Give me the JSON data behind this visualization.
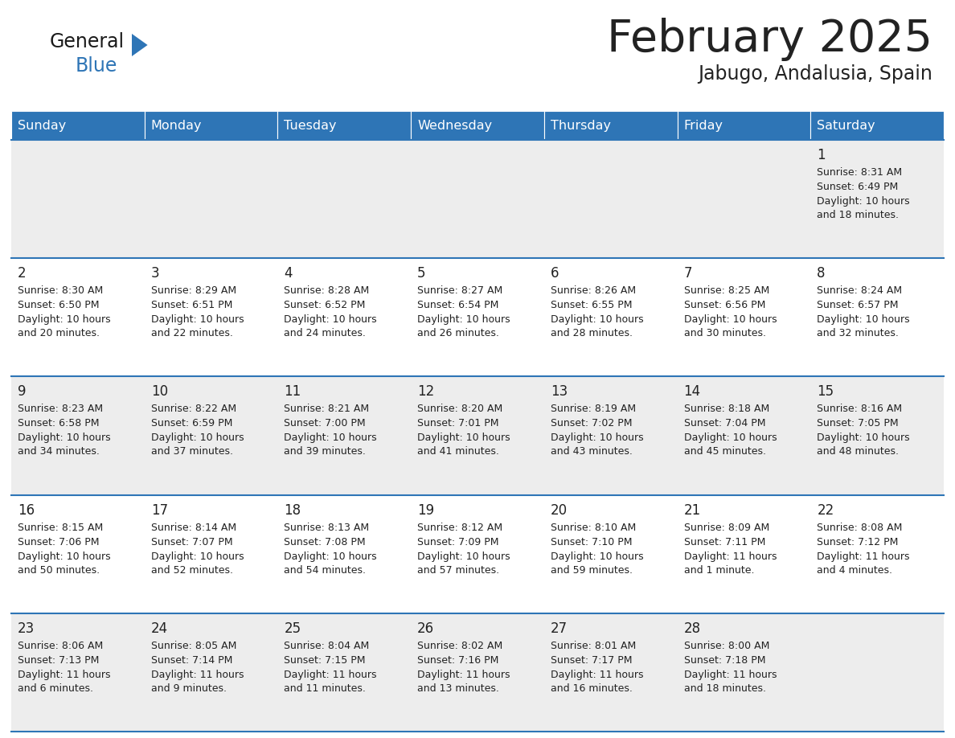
{
  "title": "February 2025",
  "subtitle": "Jabugo, Andalusia, Spain",
  "header_color": "#2E75B6",
  "header_text_color": "#FFFFFF",
  "background_color": "#FFFFFF",
  "cell_alt_color": "#EDEDED",
  "days_of_week": [
    "Sunday",
    "Monday",
    "Tuesday",
    "Wednesday",
    "Thursday",
    "Friday",
    "Saturday"
  ],
  "separator_color": "#2E75B6",
  "text_color": "#222222",
  "day_num_color": "#222222",
  "logo_general_color": "#1a1a1a",
  "logo_blue_color": "#2E75B6",
  "logo_triangle_color": "#2E75B6",
  "calendar_data": [
    [
      {
        "day": null,
        "sunrise": null,
        "sunset": null,
        "daylight": null
      },
      {
        "day": null,
        "sunrise": null,
        "sunset": null,
        "daylight": null
      },
      {
        "day": null,
        "sunrise": null,
        "sunset": null,
        "daylight": null
      },
      {
        "day": null,
        "sunrise": null,
        "sunset": null,
        "daylight": null
      },
      {
        "day": null,
        "sunrise": null,
        "sunset": null,
        "daylight": null
      },
      {
        "day": null,
        "sunrise": null,
        "sunset": null,
        "daylight": null
      },
      {
        "day": 1,
        "sunrise": "8:31 AM",
        "sunset": "6:49 PM",
        "daylight": "10 hours\nand 18 minutes."
      }
    ],
    [
      {
        "day": 2,
        "sunrise": "8:30 AM",
        "sunset": "6:50 PM",
        "daylight": "10 hours\nand 20 minutes."
      },
      {
        "day": 3,
        "sunrise": "8:29 AM",
        "sunset": "6:51 PM",
        "daylight": "10 hours\nand 22 minutes."
      },
      {
        "day": 4,
        "sunrise": "8:28 AM",
        "sunset": "6:52 PM",
        "daylight": "10 hours\nand 24 minutes."
      },
      {
        "day": 5,
        "sunrise": "8:27 AM",
        "sunset": "6:54 PM",
        "daylight": "10 hours\nand 26 minutes."
      },
      {
        "day": 6,
        "sunrise": "8:26 AM",
        "sunset": "6:55 PM",
        "daylight": "10 hours\nand 28 minutes."
      },
      {
        "day": 7,
        "sunrise": "8:25 AM",
        "sunset": "6:56 PM",
        "daylight": "10 hours\nand 30 minutes."
      },
      {
        "day": 8,
        "sunrise": "8:24 AM",
        "sunset": "6:57 PM",
        "daylight": "10 hours\nand 32 minutes."
      }
    ],
    [
      {
        "day": 9,
        "sunrise": "8:23 AM",
        "sunset": "6:58 PM",
        "daylight": "10 hours\nand 34 minutes."
      },
      {
        "day": 10,
        "sunrise": "8:22 AM",
        "sunset": "6:59 PM",
        "daylight": "10 hours\nand 37 minutes."
      },
      {
        "day": 11,
        "sunrise": "8:21 AM",
        "sunset": "7:00 PM",
        "daylight": "10 hours\nand 39 minutes."
      },
      {
        "day": 12,
        "sunrise": "8:20 AM",
        "sunset": "7:01 PM",
        "daylight": "10 hours\nand 41 minutes."
      },
      {
        "day": 13,
        "sunrise": "8:19 AM",
        "sunset": "7:02 PM",
        "daylight": "10 hours\nand 43 minutes."
      },
      {
        "day": 14,
        "sunrise": "8:18 AM",
        "sunset": "7:04 PM",
        "daylight": "10 hours\nand 45 minutes."
      },
      {
        "day": 15,
        "sunrise": "8:16 AM",
        "sunset": "7:05 PM",
        "daylight": "10 hours\nand 48 minutes."
      }
    ],
    [
      {
        "day": 16,
        "sunrise": "8:15 AM",
        "sunset": "7:06 PM",
        "daylight": "10 hours\nand 50 minutes."
      },
      {
        "day": 17,
        "sunrise": "8:14 AM",
        "sunset": "7:07 PM",
        "daylight": "10 hours\nand 52 minutes."
      },
      {
        "day": 18,
        "sunrise": "8:13 AM",
        "sunset": "7:08 PM",
        "daylight": "10 hours\nand 54 minutes."
      },
      {
        "day": 19,
        "sunrise": "8:12 AM",
        "sunset": "7:09 PM",
        "daylight": "10 hours\nand 57 minutes."
      },
      {
        "day": 20,
        "sunrise": "8:10 AM",
        "sunset": "7:10 PM",
        "daylight": "10 hours\nand 59 minutes."
      },
      {
        "day": 21,
        "sunrise": "8:09 AM",
        "sunset": "7:11 PM",
        "daylight": "11 hours\nand 1 minute."
      },
      {
        "day": 22,
        "sunrise": "8:08 AM",
        "sunset": "7:12 PM",
        "daylight": "11 hours\nand 4 minutes."
      }
    ],
    [
      {
        "day": 23,
        "sunrise": "8:06 AM",
        "sunset": "7:13 PM",
        "daylight": "11 hours\nand 6 minutes."
      },
      {
        "day": 24,
        "sunrise": "8:05 AM",
        "sunset": "7:14 PM",
        "daylight": "11 hours\nand 9 minutes."
      },
      {
        "day": 25,
        "sunrise": "8:04 AM",
        "sunset": "7:15 PM",
        "daylight": "11 hours\nand 11 minutes."
      },
      {
        "day": 26,
        "sunrise": "8:02 AM",
        "sunset": "7:16 PM",
        "daylight": "11 hours\nand 13 minutes."
      },
      {
        "day": 27,
        "sunrise": "8:01 AM",
        "sunset": "7:17 PM",
        "daylight": "11 hours\nand 16 minutes."
      },
      {
        "day": 28,
        "sunrise": "8:00 AM",
        "sunset": "7:18 PM",
        "daylight": "11 hours\nand 18 minutes."
      },
      {
        "day": null,
        "sunrise": null,
        "sunset": null,
        "daylight": null
      }
    ]
  ]
}
